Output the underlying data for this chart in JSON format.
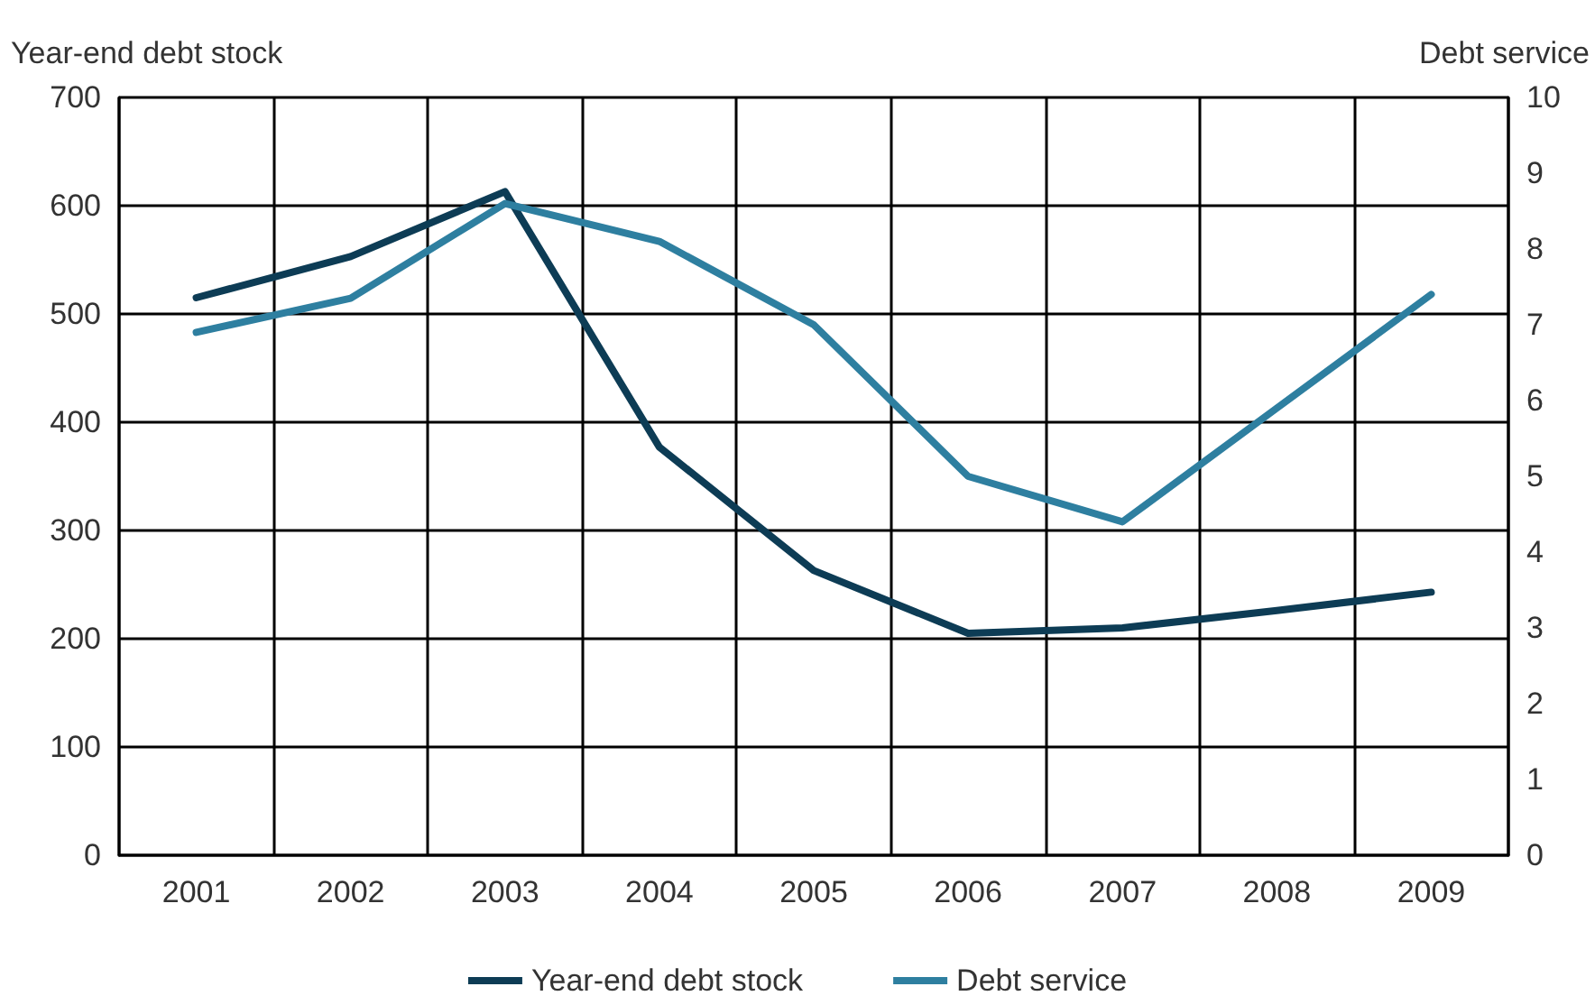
{
  "chart_data": {
    "type": "line",
    "ylabel": "Year-end debt stock",
    "y2label": "Debt service",
    "categories": [
      "2001",
      "2002",
      "2003",
      "2004",
      "2005",
      "2006",
      "2007",
      "2008",
      "2009"
    ],
    "series": [
      {
        "name": "Year-end debt stock",
        "color": "#0d3c55",
        "values": [
          515,
          553,
          613,
          377,
          263,
          205,
          210,
          226,
          243
        ]
      },
      {
        "name": "Debt service",
        "color": "#2e7fa0",
        "axis": "y2",
        "values": [
          6.9,
          7.35,
          8.6,
          8.1,
          7.0,
          5.0,
          4.4,
          5.9,
          7.4
        ]
      }
    ],
    "ylim": [
      0,
      700
    ],
    "yticks": [
      0,
      100,
      200,
      300,
      400,
      500,
      600,
      700
    ],
    "y2lim": [
      0,
      10
    ],
    "y2ticks": [
      0,
      1,
      2,
      3,
      4,
      5,
      6,
      7,
      8,
      9,
      10
    ],
    "grid": true,
    "legend": "bottom",
    "marker": "none",
    "line_style": "solid"
  }
}
